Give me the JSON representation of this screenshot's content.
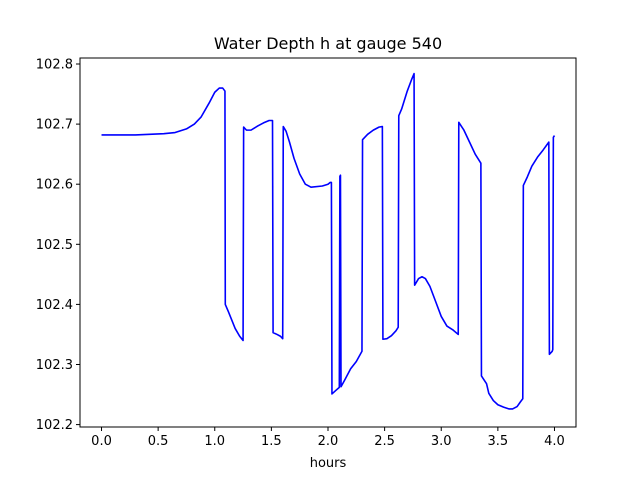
{
  "chart_data": {
    "type": "line",
    "title": "Water Depth h at gauge 540",
    "xlabel": "hours",
    "ylabel": "",
    "xlim": [
      -0.19,
      4.19
    ],
    "ylim": [
      102.196,
      102.81
    ],
    "xticks": [
      0.0,
      0.5,
      1.0,
      1.5,
      2.0,
      2.5,
      3.0,
      3.5,
      4.0
    ],
    "xtick_labels": [
      "0.0",
      "0.5",
      "1.0",
      "1.5",
      "2.0",
      "2.5",
      "3.0",
      "3.5",
      "4.0"
    ],
    "yticks": [
      102.2,
      102.3,
      102.4,
      102.5,
      102.6,
      102.7,
      102.8
    ],
    "ytick_labels": [
      "102.2",
      "102.3",
      "102.4",
      "102.5",
      "102.6",
      "102.7",
      "102.8"
    ],
    "grid": false,
    "series": [
      {
        "color": "#0000ff",
        "points": [
          [
            0.0,
            102.682
          ],
          [
            0.3,
            102.682
          ],
          [
            0.55,
            102.684
          ],
          [
            0.65,
            102.686
          ],
          [
            0.75,
            102.692
          ],
          [
            0.82,
            102.7
          ],
          [
            0.88,
            102.712
          ],
          [
            0.95,
            102.735
          ],
          [
            1.0,
            102.753
          ],
          [
            1.04,
            102.76
          ],
          [
            1.07,
            102.76
          ],
          [
            1.09,
            102.755
          ],
          [
            1.093,
            102.4
          ],
          [
            1.12,
            102.388
          ],
          [
            1.18,
            102.36
          ],
          [
            1.22,
            102.347
          ],
          [
            1.25,
            102.34
          ],
          [
            1.255,
            102.695
          ],
          [
            1.28,
            102.69
          ],
          [
            1.32,
            102.69
          ],
          [
            1.38,
            102.697
          ],
          [
            1.43,
            102.702
          ],
          [
            1.48,
            102.706
          ],
          [
            1.51,
            102.706
          ],
          [
            1.515,
            102.353
          ],
          [
            1.55,
            102.35
          ],
          [
            1.58,
            102.347
          ],
          [
            1.6,
            102.343
          ],
          [
            1.605,
            102.696
          ],
          [
            1.63,
            102.688
          ],
          [
            1.66,
            102.67
          ],
          [
            1.7,
            102.643
          ],
          [
            1.75,
            102.617
          ],
          [
            1.8,
            102.6
          ],
          [
            1.85,
            102.595
          ],
          [
            1.95,
            102.597
          ],
          [
            2.0,
            102.6
          ],
          [
            2.02,
            102.603
          ],
          [
            2.03,
            102.603
          ],
          [
            2.035,
            102.251
          ],
          [
            2.07,
            102.257
          ],
          [
            2.1,
            102.262
          ],
          [
            2.105,
            102.613
          ],
          [
            2.11,
            102.615
          ],
          [
            2.115,
            102.263
          ],
          [
            2.15,
            102.275
          ],
          [
            2.2,
            102.293
          ],
          [
            2.25,
            102.305
          ],
          [
            2.3,
            102.322
          ],
          [
            2.305,
            102.674
          ],
          [
            2.35,
            102.683
          ],
          [
            2.4,
            102.69
          ],
          [
            2.45,
            102.695
          ],
          [
            2.48,
            102.696
          ],
          [
            2.485,
            102.342
          ],
          [
            2.52,
            102.343
          ],
          [
            2.56,
            102.348
          ],
          [
            2.6,
            102.356
          ],
          [
            2.62,
            102.362
          ],
          [
            2.625,
            102.714
          ],
          [
            2.65,
            102.725
          ],
          [
            2.7,
            102.755
          ],
          [
            2.74,
            102.775
          ],
          [
            2.76,
            102.784
          ],
          [
            2.765,
            102.432
          ],
          [
            2.8,
            102.443
          ],
          [
            2.83,
            102.446
          ],
          [
            2.86,
            102.443
          ],
          [
            2.9,
            102.43
          ],
          [
            2.95,
            102.405
          ],
          [
            3.0,
            102.38
          ],
          [
            3.05,
            102.364
          ],
          [
            3.1,
            102.358
          ],
          [
            3.15,
            102.35
          ],
          [
            3.155,
            102.703
          ],
          [
            3.2,
            102.69
          ],
          [
            3.25,
            102.67
          ],
          [
            3.3,
            102.65
          ],
          [
            3.35,
            102.635
          ],
          [
            3.355,
            102.281
          ],
          [
            3.4,
            102.268
          ],
          [
            3.42,
            102.252
          ],
          [
            3.46,
            102.24
          ],
          [
            3.5,
            102.233
          ],
          [
            3.55,
            102.229
          ],
          [
            3.6,
            102.226
          ],
          [
            3.63,
            102.226
          ],
          [
            3.67,
            102.23
          ],
          [
            3.7,
            102.238
          ],
          [
            3.72,
            102.243
          ],
          [
            3.725,
            102.598
          ],
          [
            3.76,
            102.612
          ],
          [
            3.8,
            102.63
          ],
          [
            3.85,
            102.645
          ],
          [
            3.9,
            102.657
          ],
          [
            3.95,
            102.67
          ],
          [
            3.955,
            102.317
          ],
          [
            3.98,
            102.322
          ],
          [
            3.985,
            102.325
          ],
          [
            3.99,
            102.678
          ],
          [
            4.0,
            102.681
          ]
        ]
      }
    ]
  }
}
